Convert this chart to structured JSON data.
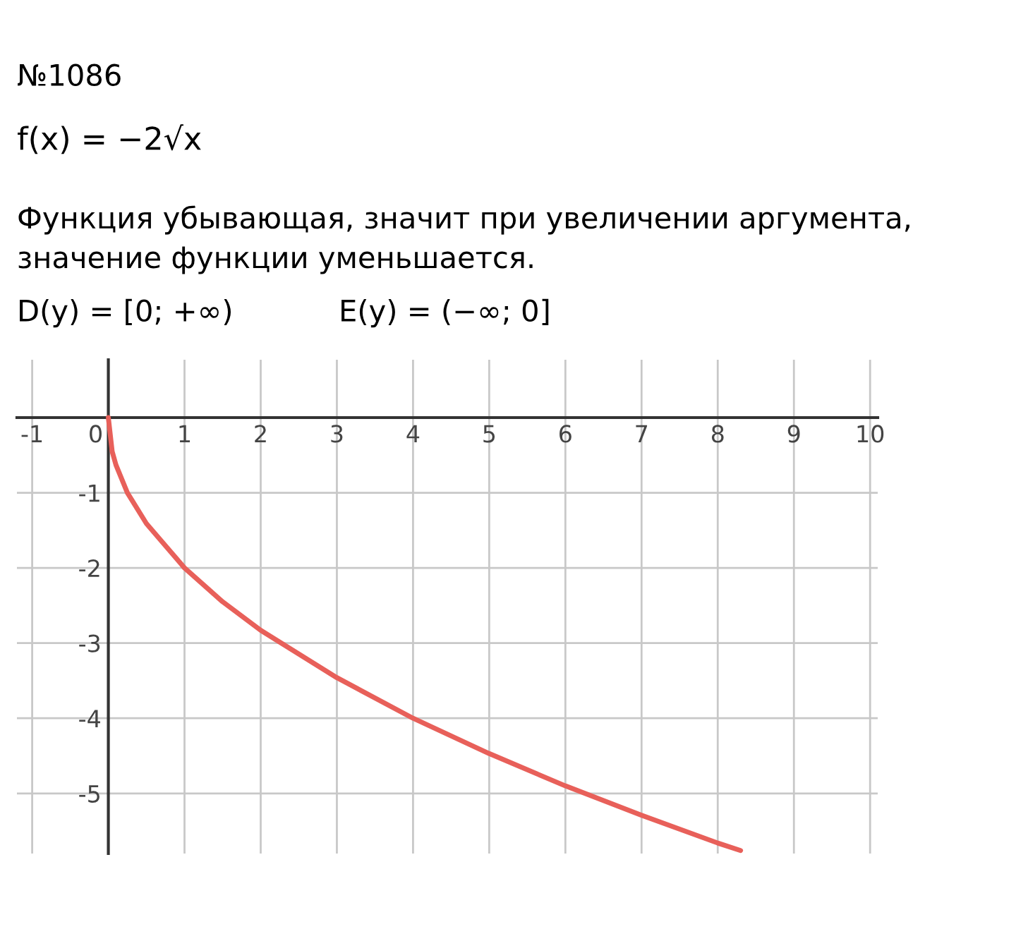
{
  "chart_data": {
    "type": "line",
    "title": "№1086",
    "annotations": [
      "f(x) = −2√x",
      "Функция убывающая, значит при увеличении аргумента, значение функции уменьшается.",
      "D(y) = [0; +∞)",
      "E(y) = (−∞; 0]"
    ],
    "series": [
      {
        "color": "#e8605a",
        "x": [
          0,
          0.05,
          0.1,
          0.25,
          0.5,
          1,
          1.5,
          2,
          3,
          4,
          5,
          6,
          7,
          8,
          8.3
        ],
        "values": [
          0,
          -0.45,
          -0.63,
          -1,
          -1.41,
          -2,
          -2.45,
          -2.83,
          -3.46,
          -4,
          -4.47,
          -4.9,
          -5.29,
          -5.66,
          -5.76
        ]
      }
    ],
    "xlim": [
      -1.2,
      10.1
    ],
    "ylim": [
      -5.8,
      0.77
    ],
    "xticks": [
      -1,
      0,
      1,
      2,
      3,
      4,
      5,
      6,
      7,
      8,
      9,
      10
    ],
    "yticks": [
      -5,
      -4,
      -3,
      -2,
      -1
    ],
    "grid": true,
    "line_style": "solid",
    "marker": "none"
  }
}
